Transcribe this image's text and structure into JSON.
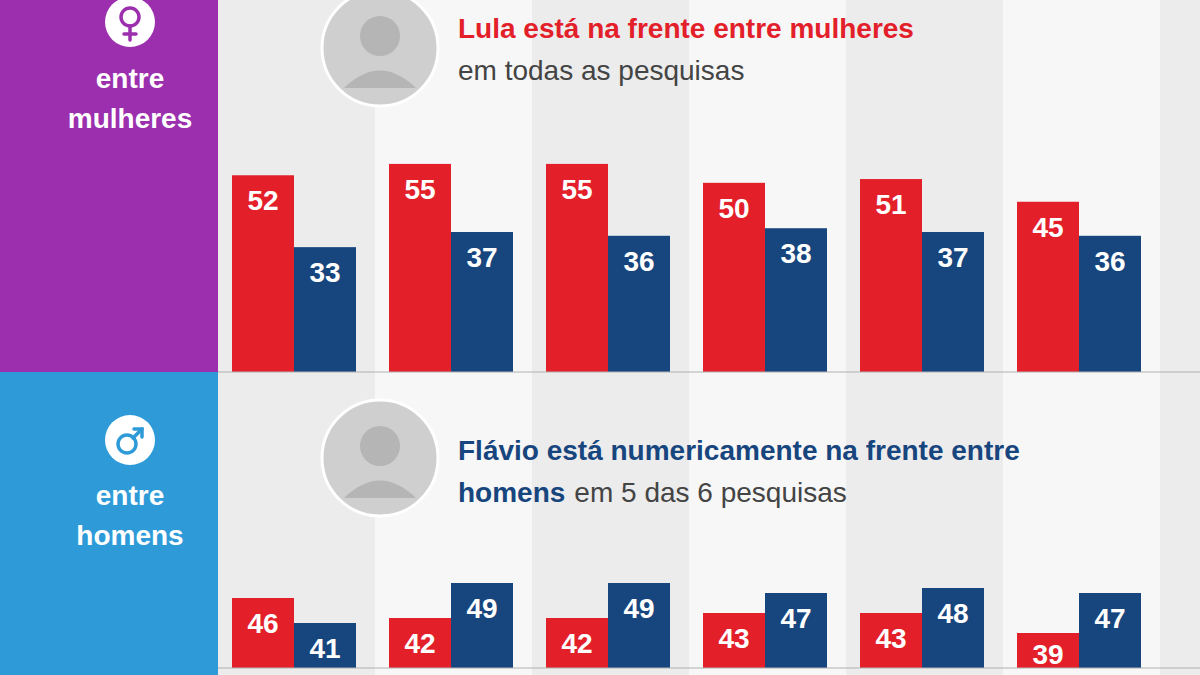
{
  "chart_data": [
    {
      "type": "bar",
      "panel_label": "entre mulheres",
      "title": "Lula está na frente entre mulheres",
      "subtitle": "em todas as pesquisas",
      "categories": [
        null,
        null,
        null,
        null,
        null,
        null
      ],
      "series": [
        {
          "name": "Lula",
          "color": "#e3202a",
          "values": [
            52,
            55,
            55,
            50,
            51,
            45
          ]
        },
        {
          "name": "Flávio",
          "color": "#17457e",
          "values": [
            33,
            37,
            36,
            38,
            37,
            36
          ]
        }
      ],
      "ylim": [
        0,
        60
      ],
      "yticks": [],
      "tick_labels": false,
      "data_labels": true,
      "grid": false
    },
    {
      "type": "bar",
      "panel_label": "entre homens",
      "title": "Flávio está numericamente na frente entre homens",
      "subtitle": "em 5 das 6 pesquisas",
      "categories": [
        null,
        null,
        null,
        null,
        null,
        null
      ],
      "series": [
        {
          "name": "Lula",
          "color": "#e3202a",
          "values": [
            46,
            42,
            42,
            43,
            43,
            39
          ]
        },
        {
          "name": "Flávio",
          "color": "#17457e",
          "values": [
            41,
            49,
            49,
            47,
            48,
            47
          ]
        }
      ],
      "ylim": [
        32,
        52
      ],
      "yticks": [],
      "tick_labels": false,
      "data_labels": true,
      "grid": false
    }
  ]
}
